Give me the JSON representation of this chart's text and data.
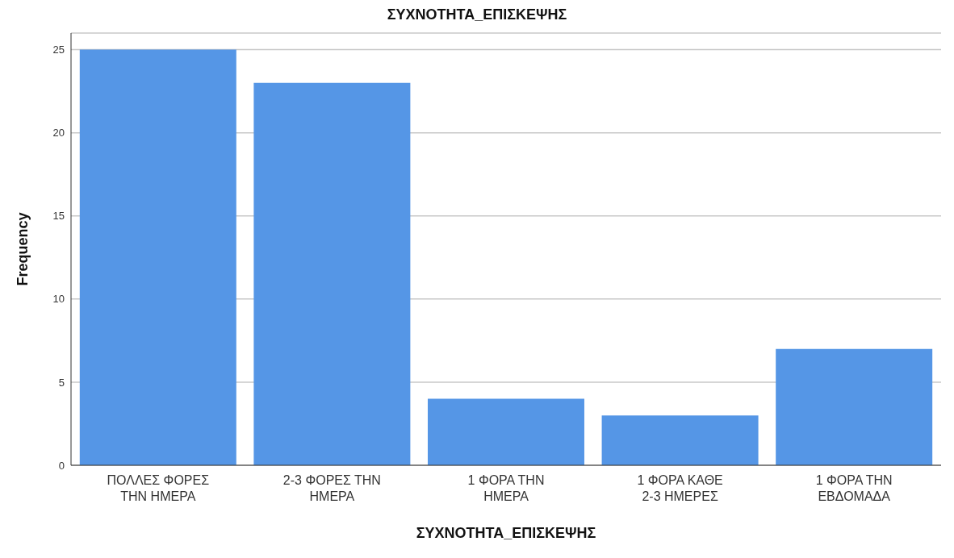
{
  "chart_data": {
    "type": "bar",
    "title": "ΣΥΧΝΟΤΗΤΑ_ΕΠΙΣΚΕΨΗΣ",
    "xlabel": "ΣΥΧΝΟΤΗΤΑ_ΕΠΙΣΚΕΨΗΣ",
    "ylabel": "Frequency",
    "categories": [
      "ΠΟΛΛΕΣ ΦΟΡΕΣ ΤΗΝ ΗΜΕΡΑ",
      "2-3 ΦΟΡΕΣ ΤΗΝ ΗΜΕΡΑ",
      "1 ΦΟΡΑ ΤΗΝ ΗΜΕΡΑ",
      "1 ΦΟΡΑ ΚΑΘΕ 2-3 ΗΜΕΡΕΣ",
      "1 ΦΟΡΑ ΤΗΝ ΕΒΔΟΜΑΔΑ"
    ],
    "values": [
      25,
      23,
      4,
      3,
      7
    ],
    "color": "#5596e6",
    "ylim": [
      0,
      26
    ],
    "yticks": [
      0,
      5,
      10,
      15,
      20,
      25
    ],
    "grid": "y"
  }
}
